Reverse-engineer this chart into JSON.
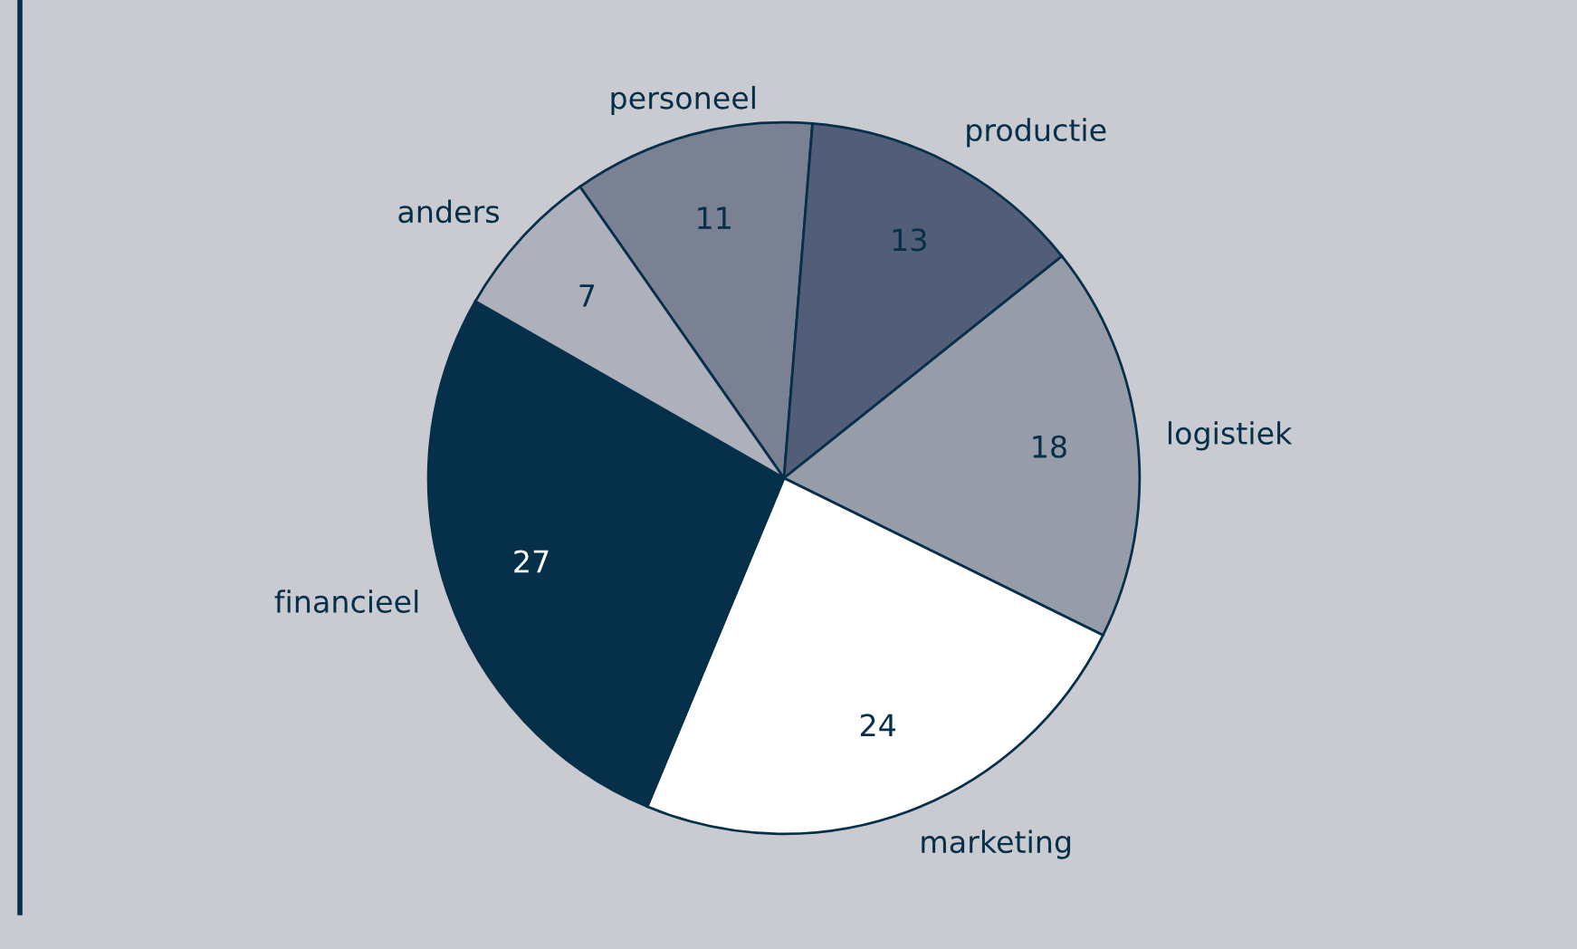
{
  "chart_data": {
    "type": "pie",
    "categories": [
      "personeel",
      "productie",
      "logistiek",
      "marketing",
      "financieel",
      "anders"
    ],
    "values": [
      11,
      13,
      18,
      24,
      27,
      7
    ],
    "colors": [
      "#7a8193",
      "#525e78",
      "#979ca9",
      "#ffffff",
      "#06304a",
      "#aeb0bc"
    ],
    "data_labels": true
  }
}
